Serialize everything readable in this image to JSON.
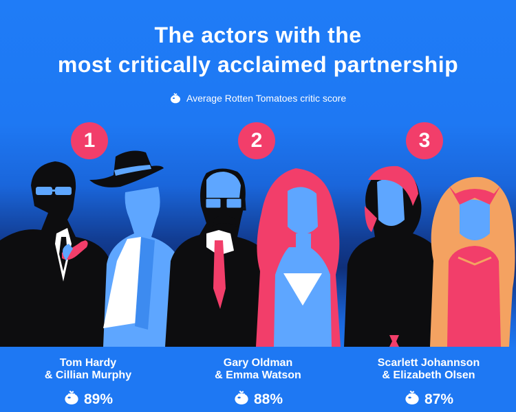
{
  "title_line1": "The actors with the",
  "title_line2": "most critically acclaimed partnership",
  "legend": {
    "icon": "tomato-icon",
    "label": "Average Rotten Tomatoes critic score"
  },
  "colors": {
    "background": "#1f7cf7",
    "accent": "#f23e6a",
    "dark": "#0d0d0f",
    "light_blue": "#5ea6ff",
    "pale": "#ffffff"
  },
  "rankings": [
    {
      "rank": "1",
      "names_line1": "Tom Hardy",
      "names_line2": "& Cillian Murphy",
      "score": "89%"
    },
    {
      "rank": "2",
      "names_line1": "Gary Oldman",
      "names_line2": "& Emma Watson",
      "score": "88%"
    },
    {
      "rank": "3",
      "names_line1": "Scarlett Johannson",
      "names_line2": "& Elizabeth Olsen",
      "score": "87%"
    }
  ]
}
